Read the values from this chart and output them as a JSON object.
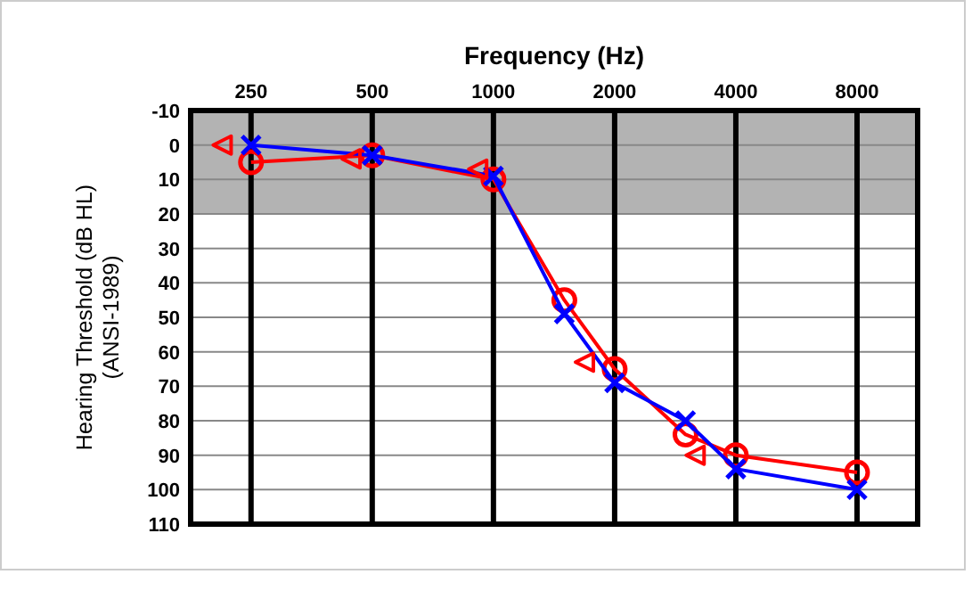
{
  "chart_data": {
    "type": "line",
    "xlabel": "Frequency (Hz)",
    "ylabel": "Hearing Threshold (dB HL)\n(ANSI-1989)",
    "log": "x",
    "xlim": [
      177,
      11314
    ],
    "xticks": [
      250,
      500,
      1000,
      2000,
      4000,
      8000
    ],
    "ylim": [
      110,
      -10
    ],
    "yticks": [
      -10,
      0,
      10,
      20,
      30,
      40,
      50,
      60,
      70,
      80,
      90,
      100,
      110
    ],
    "grid": true,
    "bands": [
      {
        "axis": "y",
        "from": -10,
        "to": 20,
        "color": "#b3b3b3"
      }
    ],
    "series": [
      {
        "color": "#ff0000",
        "marker": "circle",
        "line_style": "solid",
        "x": [
          250,
          500,
          1000,
          1500,
          2000,
          3000,
          4000,
          8000
        ],
        "values": [
          5,
          3,
          10,
          45,
          65,
          84,
          90,
          95
        ]
      },
      {
        "color": "#0000ff",
        "marker": "cross",
        "line_style": "solid",
        "x": [
          250,
          500,
          1000,
          1500,
          2000,
          3000,
          4000,
          8000
        ],
        "values": [
          0,
          3,
          9,
          49,
          69,
          80,
          94,
          100
        ]
      },
      {
        "type": "scatter",
        "color": "#ff0000",
        "marker": "triangle",
        "x": [
          212,
          443,
          914,
          1683,
          3170
        ],
        "values": [
          0,
          4,
          7,
          63,
          90
        ]
      }
    ]
  }
}
